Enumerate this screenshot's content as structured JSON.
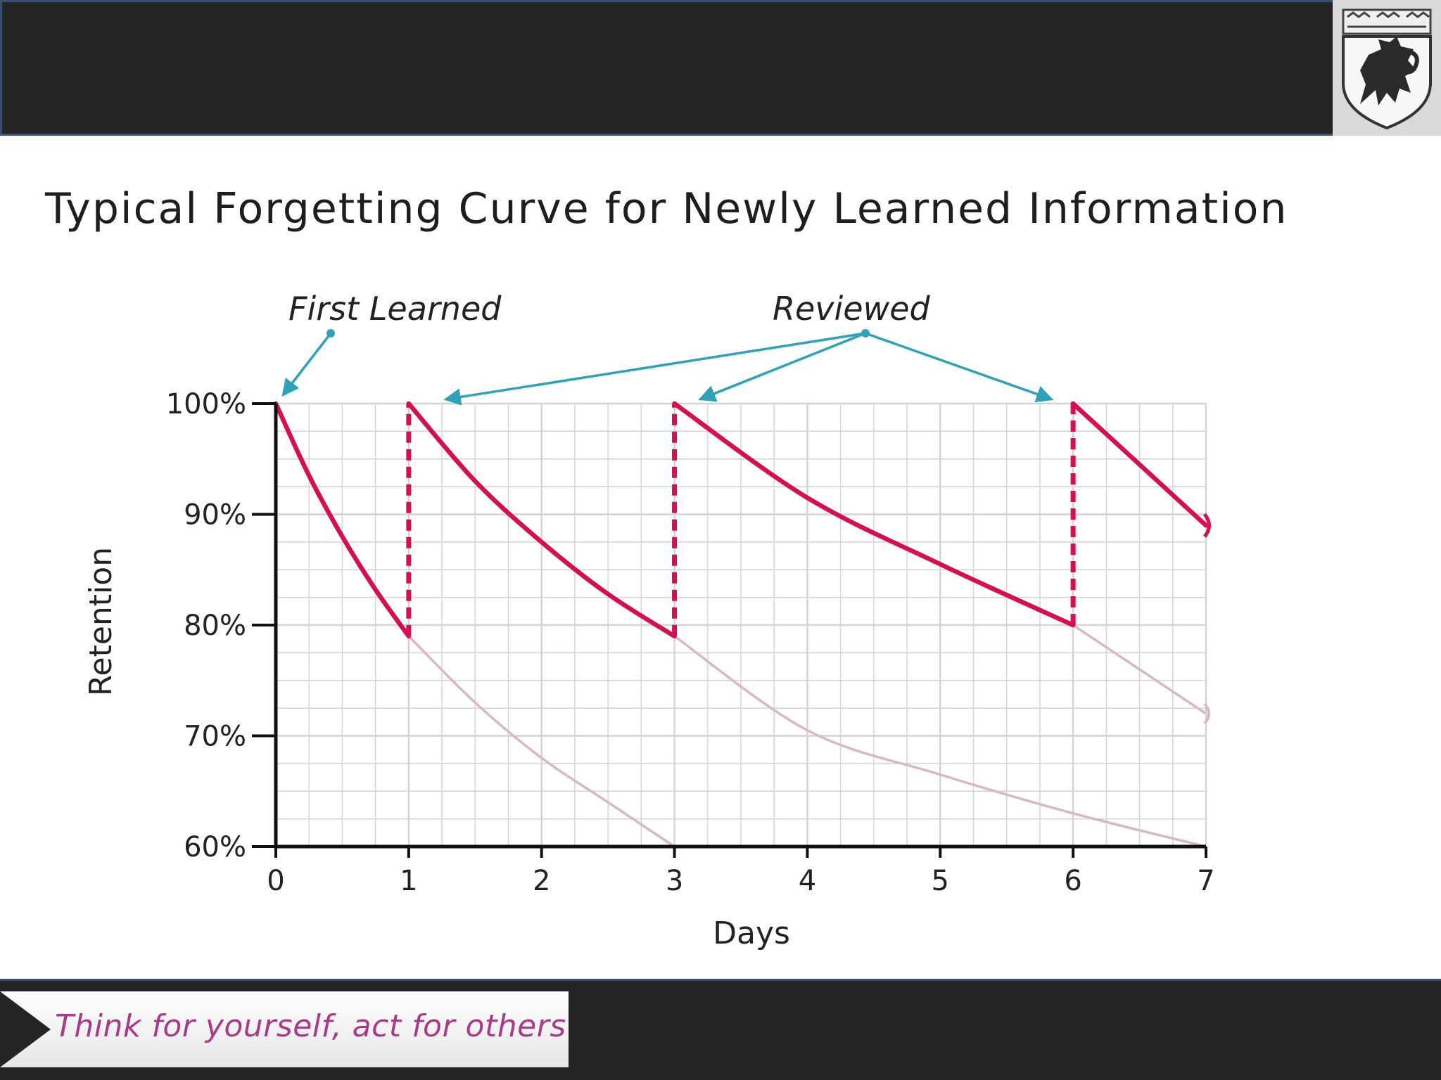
{
  "header": {
    "crest_icon": "heraldic-lion-shield-icon"
  },
  "footer": {
    "motto": "Think for yourself, act for others"
  },
  "colors": {
    "curve_active": "#d6104e",
    "curve_faded": "#d8b8c4",
    "annotation_arrow": "#2ea3b8",
    "grid": "#d3d3d3",
    "motto_text": "#a83a86"
  },
  "chart_data": {
    "type": "line",
    "title": "Typical Forgetting Curve for Newly Learned Information",
    "xlabel": "Days",
    "ylabel": "Retention",
    "xlim": [
      0,
      7
    ],
    "ylim": [
      60,
      100
    ],
    "x_ticks": [
      "0",
      "1",
      "2",
      "3",
      "4",
      "5",
      "6",
      "7"
    ],
    "y_ticks": [
      "60%",
      "70%",
      "80%",
      "90%",
      "100%"
    ],
    "grid": true,
    "minor_grid_step_days": 0.25,
    "minor_grid_step_pct": 2.5,
    "active_segments": [
      {
        "x": [
          0,
          0.25,
          0.5,
          0.75,
          1
        ],
        "y": [
          100,
          93.5,
          88,
          83.2,
          79
        ]
      },
      {
        "x": [
          1,
          1.5,
          2,
          2.5,
          3
        ],
        "y": [
          100,
          93,
          87.5,
          82.8,
          79
        ]
      },
      {
        "x": [
          3,
          4,
          5,
          6
        ],
        "y": [
          100,
          91.5,
          85.5,
          80
        ]
      },
      {
        "x": [
          6,
          6.5,
          7
        ],
        "y": [
          100,
          94.5,
          89
        ]
      }
    ],
    "faded_segments": [
      {
        "x": [
          1,
          1.5,
          2,
          2.5,
          3
        ],
        "y": [
          79,
          73,
          68,
          64,
          60
        ]
      },
      {
        "x": [
          3,
          4,
          5,
          6,
          7
        ],
        "y": [
          79,
          70.5,
          66.5,
          63,
          60
        ]
      },
      {
        "x": [
          6,
          6.5,
          7
        ],
        "y": [
          80,
          76,
          72
        ]
      }
    ],
    "review_lines": [
      {
        "x": 1,
        "from": 79,
        "to": 100
      },
      {
        "x": 3,
        "from": 79,
        "to": 100
      },
      {
        "x": 6,
        "from": 80,
        "to": 100
      }
    ],
    "annotations": [
      {
        "text": "First Learned",
        "points_to": [
          {
            "x": 0,
            "y": 100
          }
        ]
      },
      {
        "text": "Reviewed",
        "points_to": [
          {
            "x": 1,
            "y": 100
          },
          {
            "x": 3,
            "y": 100
          },
          {
            "x": 6,
            "y": 100
          }
        ]
      }
    ]
  }
}
